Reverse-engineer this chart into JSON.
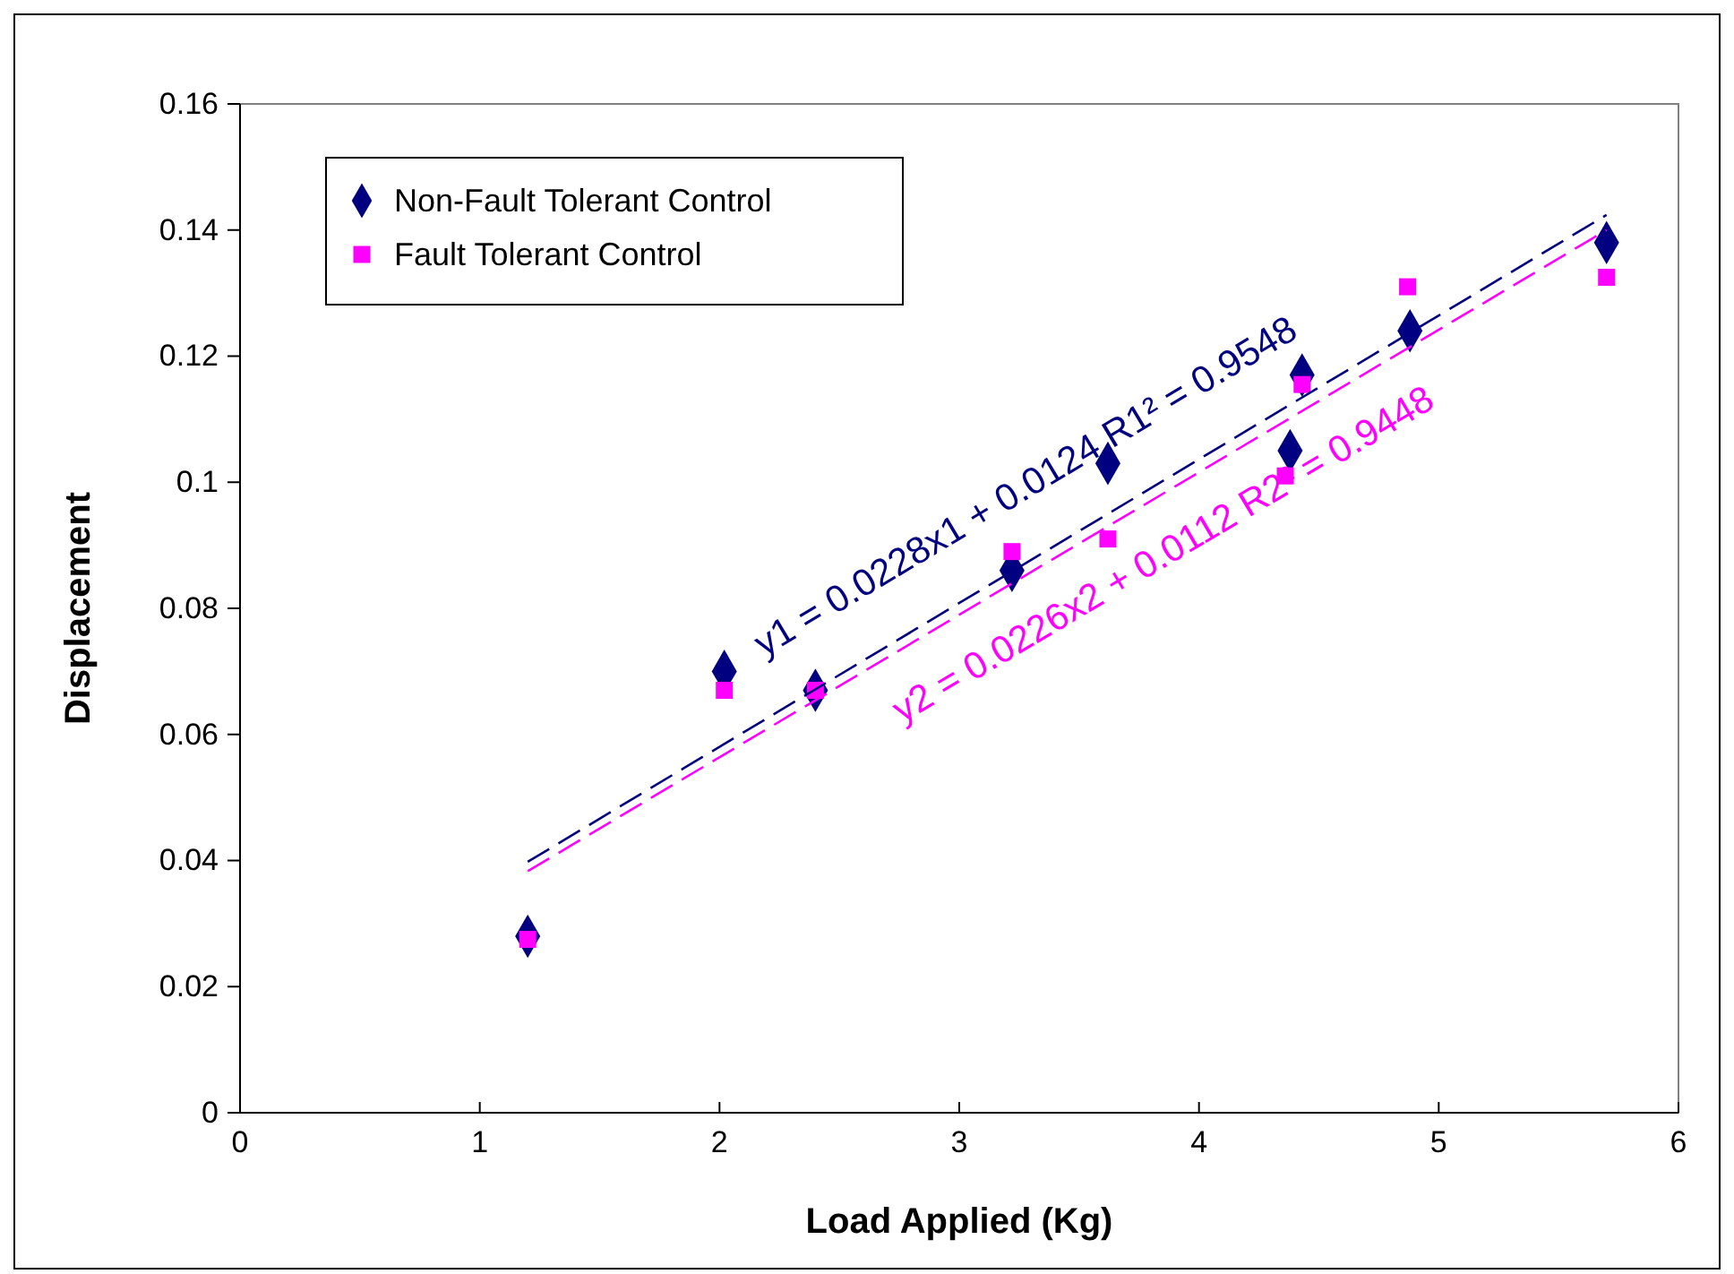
{
  "chart_data": {
    "type": "scatter",
    "xlabel": "Load Applied (Kg)",
    "ylabel": "Displacement",
    "xlim": [
      0,
      6
    ],
    "xticks": [
      0,
      1,
      2,
      3,
      4,
      5,
      6
    ],
    "ylim": [
      0,
      0.16
    ],
    "yticks": [
      0,
      0.02,
      0.04,
      0.06,
      0.08,
      0.1,
      0.12,
      0.14,
      0.16
    ],
    "grid": false,
    "legend": "top left",
    "series": [
      {
        "name": "Non-Fault Tolerant Control",
        "color": "#000080",
        "marker": "diamond",
        "x": [
          1.2,
          2.02,
          2.4,
          3.22,
          3.62,
          4.38,
          4.43,
          4.88,
          5.7
        ],
        "values": [
          0.028,
          0.07,
          0.067,
          0.086,
          0.103,
          0.105,
          0.117,
          0.124,
          0.138
        ]
      },
      {
        "name": "Fault Tolerant Control",
        "color": "#ff00ff",
        "marker": "square",
        "x": [
          1.2,
          2.02,
          2.4,
          3.22,
          3.62,
          4.36,
          4.43,
          4.87,
          5.7
        ],
        "values": [
          0.0275,
          0.067,
          0.067,
          0.089,
          0.091,
          0.101,
          0.1155,
          0.131,
          0.1325
        ]
      },
      {
        "type": "line",
        "color": "#000080",
        "line_style": "dashed",
        "x": [
          1.2,
          5.7
        ],
        "values": [
          0.0398,
          0.1424
        ]
      },
      {
        "type": "line",
        "color": "#ff00ff",
        "line_style": "dashed",
        "x": [
          1.2,
          5.7
        ],
        "values": [
          0.0383,
          0.14
        ]
      }
    ],
    "annotations": [
      "y1 = 0.0228x1 + 0.0124 R1² = 0.9548",
      "y2 = 0.0226x2 + 0.0112 R2² = 0.9448"
    ]
  }
}
